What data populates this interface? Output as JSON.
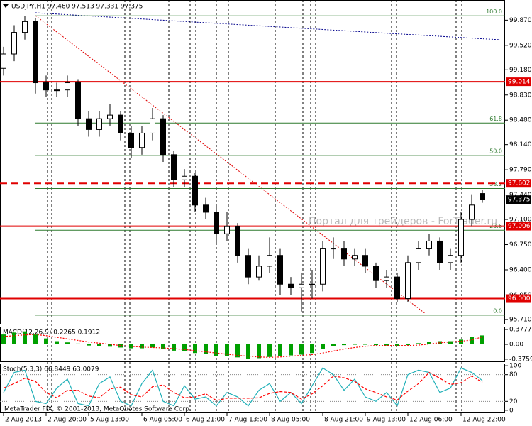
{
  "chart_data": [
    {
      "type": "candlestick",
      "title": "USDJPY,H1  97.460 97.513 97.331 97.375",
      "x": [
        "2 Aug 2013",
        null,
        null,
        null,
        "2 Aug 20:00",
        null,
        null,
        null,
        "5 Aug 13:00",
        null,
        null,
        null,
        null,
        "6 Aug 05:00",
        null,
        null,
        null,
        "6 Aug 21:00",
        null,
        null,
        null,
        "7 Aug 13:00",
        null,
        null,
        null,
        "8 Aug 05:00",
        null,
        null,
        null,
        null,
        "8 Aug 21:00",
        null,
        null,
        null,
        "9 Aug 13:00",
        null,
        null,
        null,
        "12 Aug 06:00",
        null,
        null,
        null,
        null,
        "12 Aug 22:00",
        null,
        null
      ],
      "open": [
        99.2,
        99.4,
        99.7,
        99.85,
        99.0,
        98.9,
        98.9,
        99.0,
        98.5,
        98.35,
        98.5,
        98.55,
        98.3,
        98.1,
        98.3,
        98.5,
        98.0,
        97.65,
        97.7,
        97.3,
        97.2,
        96.9,
        97.0,
        96.6,
        96.3,
        96.45,
        96.6,
        96.2,
        96.15,
        96.2,
        96.2,
        96.7,
        96.7,
        96.55,
        96.6,
        96.45,
        96.25,
        96.3,
        96.0,
        96.5,
        96.7,
        96.8,
        96.5,
        96.6,
        97.1,
        97.46
      ],
      "high": [
        99.5,
        99.8,
        99.93,
        99.9,
        99.1,
        99.0,
        99.1,
        99.05,
        98.6,
        98.6,
        98.7,
        98.6,
        98.4,
        98.4,
        98.65,
        98.55,
        98.05,
        97.8,
        97.75,
        97.4,
        97.3,
        97.2,
        97.05,
        96.7,
        96.6,
        96.85,
        96.7,
        96.3,
        96.35,
        96.4,
        96.8,
        96.85,
        96.8,
        96.7,
        96.7,
        96.5,
        96.4,
        96.35,
        96.6,
        96.8,
        96.9,
        96.85,
        96.7,
        97.2,
        97.45,
        97.513
      ],
      "low": [
        99.1,
        99.3,
        99.6,
        98.85,
        98.8,
        98.8,
        98.8,
        98.4,
        98.25,
        98.25,
        98.4,
        98.2,
        97.95,
        98.0,
        98.2,
        97.9,
        97.55,
        97.55,
        97.2,
        97.1,
        96.75,
        96.8,
        96.5,
        96.2,
        96.25,
        96.35,
        96.05,
        96.05,
        95.82,
        96.0,
        96.1,
        96.55,
        96.45,
        96.45,
        96.35,
        96.15,
        96.15,
        95.95,
        95.95,
        96.4,
        96.6,
        96.4,
        96.4,
        96.5,
        97.0,
        97.331
      ],
      "close": [
        99.4,
        99.7,
        99.85,
        99.0,
        98.9,
        98.9,
        99.0,
        98.5,
        98.35,
        98.5,
        98.55,
        98.3,
        98.1,
        98.3,
        98.5,
        98.0,
        97.65,
        97.7,
        97.3,
        97.2,
        96.9,
        97.0,
        96.6,
        96.3,
        96.45,
        96.6,
        96.2,
        96.15,
        96.2,
        96.2,
        96.7,
        96.7,
        96.55,
        96.6,
        96.45,
        96.25,
        96.3,
        96.0,
        96.5,
        96.7,
        96.8,
        96.5,
        96.6,
        97.1,
        97.3,
        97.375
      ],
      "ylim": [
        95.64,
        100.15
      ],
      "yticks": [
        {
          "value": 99.87,
          "label": "99.870"
        },
        {
          "value": 99.52,
          "label": "99.520"
        },
        {
          "value": 99.18,
          "label": "99.180"
        },
        {
          "value": 98.83,
          "label": "98.830"
        },
        {
          "value": 98.48,
          "label": "98.480"
        },
        {
          "value": 98.14,
          "label": "98.140"
        },
        {
          "value": 97.79,
          "label": "97.790"
        },
        {
          "value": 97.44,
          "label": "97.440"
        },
        {
          "value": 97.1,
          "label": "97.100"
        },
        {
          "value": 96.75,
          "label": "96.750"
        },
        {
          "value": 96.4,
          "label": "96.400"
        },
        {
          "value": 96.05,
          "label": "96.050"
        },
        {
          "value": 95.71,
          "label": "95.710"
        }
      ],
      "levels": [
        {
          "value": 99.014,
          "label": "99.014",
          "style": "solid"
        },
        {
          "value": 97.602,
          "label": "97.602",
          "style": "dashed"
        },
        {
          "value": 97.006,
          "label": "97.006",
          "style": "solid"
        },
        {
          "value": 96.0,
          "label": "96.000",
          "style": "solid"
        }
      ],
      "level_color": "#e00000",
      "fib_levels": [
        {
          "value": 99.93,
          "label": "100.0"
        },
        {
          "value": 98.44,
          "label": "61.8"
        },
        {
          "value": 97.99,
          "label": "50.0"
        },
        {
          "value": 97.53,
          "label": "38.2"
        },
        {
          "value": 96.95,
          "label": "23.6"
        },
        {
          "value": 95.77,
          "label": "0.0"
        }
      ],
      "fib_color": "#2f7a2f",
      "current_price": 97.375,
      "watermark": "Портал для трейдеров - ForTrader.ru",
      "annotation": "MetaTrader FIX, © 2001-2013, MetaQuotes Software Corp."
    },
    {
      "type": "macd",
      "title": "MACD(12,26,9) 0.2265 0.1912",
      "series": [
        {
          "style": "bar",
          "color": "#00a000",
          "values": [
            0.25,
            0.3,
            0.33,
            0.25,
            0.15,
            0.08,
            0.05,
            0.02,
            -0.03,
            -0.05,
            -0.06,
            -0.08,
            -0.1,
            -0.1,
            -0.08,
            -0.12,
            -0.16,
            -0.18,
            -0.22,
            -0.25,
            -0.3,
            -0.3,
            -0.33,
            -0.36,
            -0.35,
            -0.32,
            -0.3,
            -0.28,
            -0.26,
            -0.22,
            -0.12,
            -0.05,
            -0.02,
            0.0,
            0.0,
            -0.02,
            -0.03,
            -0.05,
            -0.02,
            0.03,
            0.07,
            0.08,
            0.08,
            0.12,
            0.18,
            0.2265
          ]
        },
        {
          "style": "dotted",
          "color": "#ff0000",
          "values": [
            0.2,
            0.22,
            0.24,
            0.25,
            0.22,
            0.18,
            0.14,
            0.1,
            0.06,
            0.03,
            0.0,
            -0.03,
            -0.05,
            -0.07,
            -0.08,
            -0.09,
            -0.11,
            -0.13,
            -0.16,
            -0.19,
            -0.22,
            -0.25,
            -0.28,
            -0.3,
            -0.32,
            -0.33,
            -0.32,
            -0.3,
            -0.28,
            -0.26,
            -0.22,
            -0.17,
            -0.12,
            -0.08,
            -0.05,
            -0.03,
            -0.03,
            -0.03,
            -0.03,
            -0.02,
            0.01,
            0.04,
            0.06,
            0.08,
            0.11,
            0.1912
          ]
        }
      ],
      "ylim": [
        -0.45,
        0.45
      ],
      "yticks": [
        0.3777,
        {
          "value": 0,
          "label": "0.00"
        },
        -0.3759
      ]
    },
    {
      "type": "stochastic",
      "title": "Stoch(5,3,3) 66.8449 63.0079",
      "series": [
        {
          "style": "solid",
          "color": "#20b0b8",
          "values": [
            40,
            85,
            90,
            20,
            15,
            50,
            70,
            15,
            10,
            60,
            75,
            20,
            10,
            60,
            90,
            20,
            10,
            55,
            25,
            30,
            10,
            40,
            30,
            10,
            45,
            60,
            20,
            40,
            15,
            55,
            95,
            80,
            45,
            70,
            30,
            20,
            40,
            10,
            80,
            90,
            85,
            40,
            50,
            95,
            85,
            66.8449
          ]
        },
        {
          "style": "dashed",
          "color": "#ff0000",
          "values": [
            50,
            60,
            72,
            65,
            40,
            28,
            45,
            45,
            32,
            28,
            48,
            52,
            35,
            30,
            53,
            57,
            40,
            28,
            30,
            37,
            22,
            27,
            27,
            27,
            28,
            38,
            42,
            40,
            25,
            37,
            55,
            77,
            73,
            65,
            48,
            40,
            30,
            23,
            43,
            60,
            85,
            72,
            58,
            62,
            77,
            63.0079
          ]
        }
      ],
      "ylim": [
        -5,
        105
      ],
      "yticks": [
        100,
        80,
        20,
        0
      ]
    }
  ]
}
